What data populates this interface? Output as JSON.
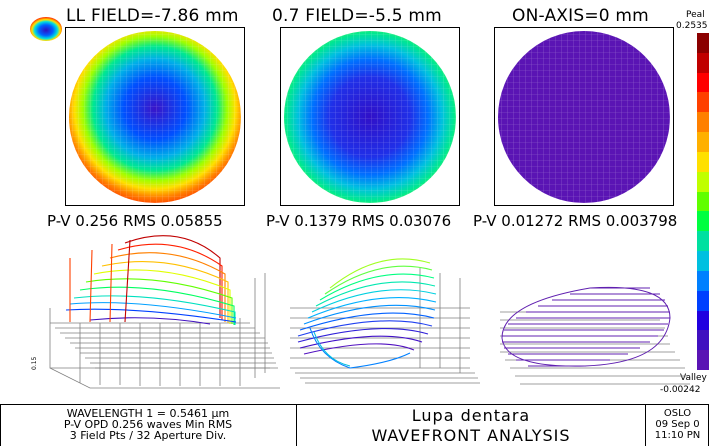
{
  "headers": {
    "full_field": "LL FIELD=-7.86 mm",
    "field_07": "0.7 FIELD=-5.5 mm",
    "on_axis": "ON-AXIS=0 mm"
  },
  "stats": {
    "full_field": "P-V 0.256 RMS 0.05855",
    "field_07": "P-V 0.1379 RMS 0.03076",
    "on_axis": "P-V 0.01272 RMS 0.003798"
  },
  "scale": {
    "peak_label": "Peal",
    "peak_value": "0.2535",
    "valley_label": "Valley",
    "valley_value": "-0.00242",
    "axis_tick": "0.15",
    "colors": [
      "#8b0000",
      "#c00000",
      "#ff0000",
      "#ff4000",
      "#ff8000",
      "#ffb000",
      "#ffe000",
      "#c0ff00",
      "#60ff00",
      "#00ff40",
      "#00e0a0",
      "#00c0e0",
      "#0080ff",
      "#0040ff",
      "#2000e0",
      "#4010c0",
      "#5a14b4"
    ]
  },
  "footer": {
    "wavelength": "WAVELENGTH 1 = 0.5461 µm",
    "opd": "P-V OPD 0.256 waves Min RMS",
    "field_pts": "3 Field Pts / 32 Aperture Div.",
    "lens_name": "Lupa dentara",
    "analysis": "WAVEFRONT ANALYSIS",
    "app": "OSLO",
    "date": "09 Sep 0",
    "time": "11:10 PN"
  }
}
